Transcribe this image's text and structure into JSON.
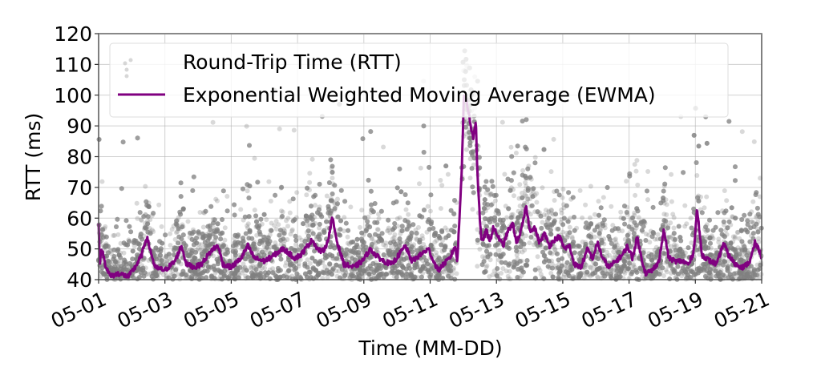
{
  "chart_data": {
    "type": "scatter",
    "title": "",
    "xlabel": "Time (MM-DD)",
    "ylabel": "RTT (ms)",
    "ylim": [
      40,
      120
    ],
    "xlim": [
      "05-01",
      "05-21"
    ],
    "grid": true,
    "legend_position": "upper left",
    "x_ticks": [
      "05-01",
      "05-03",
      "05-05",
      "05-07",
      "05-09",
      "05-11",
      "05-13",
      "05-15",
      "05-17",
      "05-19",
      "05-21"
    ],
    "y_ticks": [
      40,
      50,
      60,
      70,
      80,
      90,
      100,
      110,
      120
    ],
    "series": [
      {
        "name": "Round-Trip Time (RTT)",
        "kind": "scatter",
        "color": "#808080",
        "alpha": 0.3,
        "description": "Dense per-sample RTT measurements, mostly 40-60 ms with outliers up to 120 ms; gap of no samples around 05-11 00:00 to 05-11 06:00 except dense cluster 80-120 ms during 05-11 spike"
      },
      {
        "name": "Exponential Weighted Moving Average (EWMA)",
        "kind": "line",
        "color": "#800080",
        "points_day_offset_vs_ms": [
          [
            0.0,
            59
          ],
          [
            0.03,
            45
          ],
          [
            0.1,
            50
          ],
          [
            0.2,
            45
          ],
          [
            0.35,
            41
          ],
          [
            0.6,
            42
          ],
          [
            0.9,
            41
          ],
          [
            1.1,
            44
          ],
          [
            1.3,
            48
          ],
          [
            1.45,
            54
          ],
          [
            1.55,
            50
          ],
          [
            1.7,
            44
          ],
          [
            2.0,
            43
          ],
          [
            2.3,
            46
          ],
          [
            2.5,
            51
          ],
          [
            2.65,
            45
          ],
          [
            2.9,
            44
          ],
          [
            3.1,
            45
          ],
          [
            3.3,
            48
          ],
          [
            3.45,
            50
          ],
          [
            3.6,
            51
          ],
          [
            3.75,
            45
          ],
          [
            4.0,
            44
          ],
          [
            4.3,
            47
          ],
          [
            4.5,
            51
          ],
          [
            4.7,
            47
          ],
          [
            5.0,
            46
          ],
          [
            5.3,
            48
          ],
          [
            5.55,
            50
          ],
          [
            5.7,
            49
          ],
          [
            5.9,
            47
          ],
          [
            6.1,
            48
          ],
          [
            6.3,
            51
          ],
          [
            6.45,
            53
          ],
          [
            6.6,
            50
          ],
          [
            6.75,
            49
          ],
          [
            6.9,
            52
          ],
          [
            7.05,
            60
          ],
          [
            7.2,
            52
          ],
          [
            7.4,
            45
          ],
          [
            7.7,
            44
          ],
          [
            7.95,
            46
          ],
          [
            8.2,
            50
          ],
          [
            8.35,
            48
          ],
          [
            8.6,
            46
          ],
          [
            8.85,
            45
          ],
          [
            9.05,
            48
          ],
          [
            9.25,
            51
          ],
          [
            9.45,
            46
          ],
          [
            9.7,
            48
          ],
          [
            9.95,
            50
          ],
          [
            10.1,
            46
          ],
          [
            10.25,
            43
          ],
          [
            10.4,
            45
          ],
          [
            10.6,
            47
          ],
          [
            10.75,
            51
          ],
          [
            10.82,
            46
          ],
          [
            10.95,
            75
          ],
          [
            11.02,
            100
          ],
          [
            11.1,
            98
          ],
          [
            11.2,
            92
          ],
          [
            11.25,
            88
          ],
          [
            11.3,
            86
          ],
          [
            11.38,
            92
          ],
          [
            11.42,
            76
          ],
          [
            11.5,
            60
          ],
          [
            11.55,
            52
          ],
          [
            11.7,
            56
          ],
          [
            11.8,
            52
          ],
          [
            11.9,
            57
          ],
          [
            12.05,
            54
          ],
          [
            12.2,
            51
          ],
          [
            12.35,
            56
          ],
          [
            12.5,
            58
          ],
          [
            12.6,
            52
          ],
          [
            12.75,
            56
          ],
          [
            12.9,
            64
          ],
          [
            13.0,
            56
          ],
          [
            13.15,
            57
          ],
          [
            13.3,
            52
          ],
          [
            13.45,
            55
          ],
          [
            13.6,
            51
          ],
          [
            13.75,
            53
          ],
          [
            13.9,
            54
          ],
          [
            14.05,
            50
          ],
          [
            14.2,
            51
          ],
          [
            14.35,
            45
          ],
          [
            14.55,
            44
          ],
          [
            14.75,
            50
          ],
          [
            14.9,
            47
          ],
          [
            15.05,
            52
          ],
          [
            15.2,
            47
          ],
          [
            15.4,
            44
          ],
          [
            15.6,
            46
          ],
          [
            15.8,
            48
          ],
          [
            15.95,
            51
          ],
          [
            16.1,
            47
          ],
          [
            16.25,
            54
          ],
          [
            16.35,
            48
          ],
          [
            16.5,
            42
          ],
          [
            16.7,
            43
          ],
          [
            16.9,
            46
          ],
          [
            17.05,
            56
          ],
          [
            17.2,
            47
          ],
          [
            17.4,
            46
          ],
          [
            17.6,
            46
          ],
          [
            17.8,
            45
          ],
          [
            17.95,
            49
          ],
          [
            18.05,
            63
          ],
          [
            18.2,
            48
          ],
          [
            18.45,
            46
          ],
          [
            18.65,
            45
          ],
          [
            18.85,
            52
          ],
          [
            19.0,
            48
          ],
          [
            19.2,
            45
          ],
          [
            19.45,
            44
          ],
          [
            19.65,
            46
          ],
          [
            19.8,
            52
          ],
          [
            19.95,
            49
          ],
          [
            20.1,
            43
          ],
          [
            20.25,
            48
          ],
          [
            20.4,
            44
          ],
          [
            20.6,
            46
          ],
          [
            20.8,
            44
          ]
        ]
      }
    ]
  },
  "legend": {
    "items": [
      {
        "label": "Round-Trip Time (RTT)",
        "marker": "scatter-dot",
        "color": "#b0b0b0"
      },
      {
        "label": "Exponential Weighted Moving Average (EWMA)",
        "marker": "line",
        "color": "#800080"
      }
    ]
  },
  "axes": {
    "xlabel": "Time (MM-DD)",
    "ylabel": "RTT (ms)"
  }
}
